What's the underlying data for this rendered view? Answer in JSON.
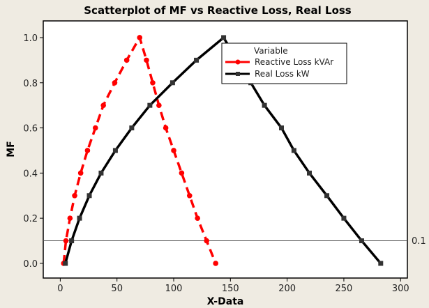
{
  "chart_data": {
    "type": "line",
    "title": "Scatterplot of MF vs Reactive Loss, Real Loss",
    "xlabel": "X-Data",
    "ylabel": "MF",
    "xlim": [
      -15,
      306
    ],
    "ylim": [
      -0.065,
      1.074
    ],
    "xticks": [
      0,
      50,
      100,
      150,
      200,
      250,
      300
    ],
    "yticks": [
      0.0,
      0.2,
      0.4,
      0.6,
      0.8,
      1.0
    ],
    "grid": false,
    "legend": {
      "title": "Variable",
      "placement": "top-right"
    },
    "reference_line": {
      "y": 0.1,
      "label": "0.1"
    },
    "series": [
      {
        "name": "Reactive Loss kVAr",
        "color": "#ff0000",
        "style": "dashed",
        "marker": "circle",
        "x": [
          3,
          5,
          8.6,
          12.7,
          18,
          24,
          31,
          38,
          48,
          58.6,
          70,
          76,
          81.5,
          87,
          93,
          100,
          107,
          114,
          121,
          129,
          137
        ],
        "y": [
          0,
          0.1,
          0.2,
          0.3,
          0.4,
          0.5,
          0.6,
          0.7,
          0.8,
          0.9,
          1.0,
          0.9,
          0.8,
          0.7,
          0.6,
          0.5,
          0.4,
          0.3,
          0.2,
          0.1,
          0
        ]
      },
      {
        "name": "Real Loss  kW",
        "color": "#000000",
        "style": "solid",
        "marker": "square",
        "x": [
          4.5,
          10,
          17,
          25.6,
          36,
          48.6,
          63,
          79,
          99,
          120,
          144,
          156,
          168,
          180,
          195,
          206,
          219.6,
          235,
          250,
          265.7,
          282.5
        ],
        "y": [
          0,
          0.1,
          0.2,
          0.3,
          0.4,
          0.5,
          0.6,
          0.7,
          0.8,
          0.9,
          1.0,
          0.9,
          0.8,
          0.7,
          0.6,
          0.5,
          0.4,
          0.3,
          0.2,
          0.1,
          0
        ]
      }
    ]
  }
}
